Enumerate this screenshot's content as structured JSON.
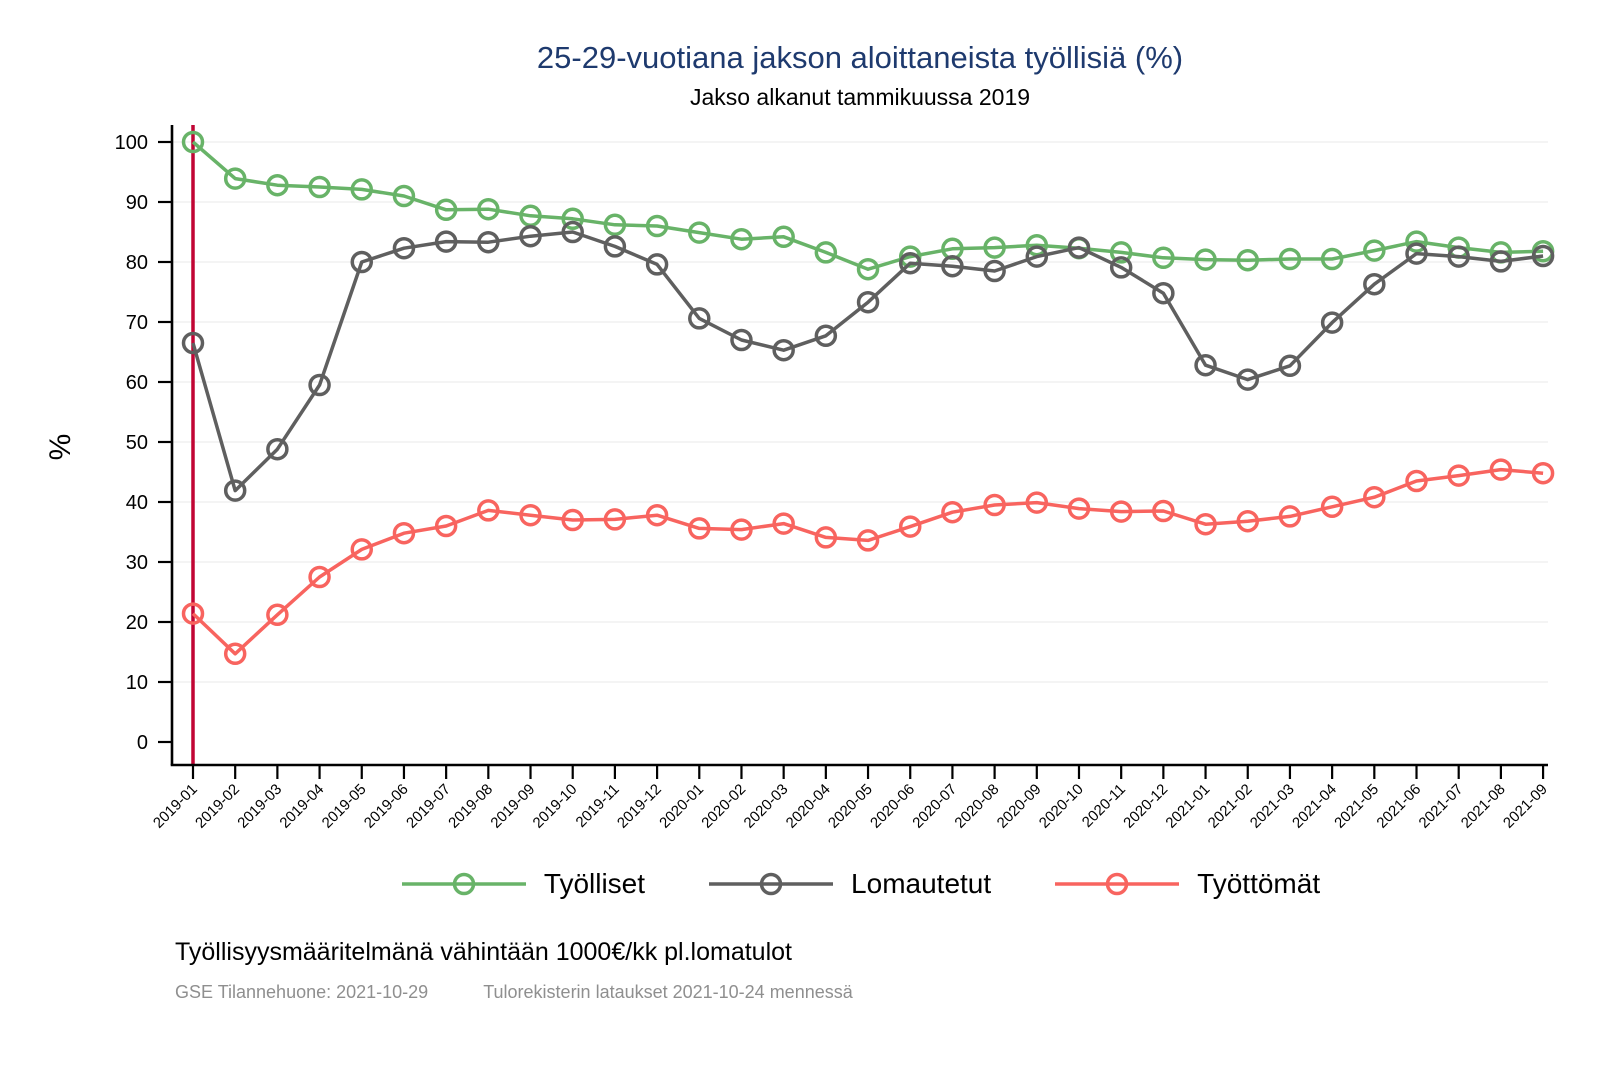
{
  "title": "25-29-vuotiana jakson aloittaneista työllisiä (%)",
  "subtitle": "Jakso alkanut tammikuussa 2019",
  "footnote": "Työllisyysmääritelmänä vähintään 1000€/kk pl.lomatulot",
  "credits": {
    "left": "GSE Tilannehuone: 2021-10-29",
    "right": "Tulorekisterin lataukset 2021-10-24 mennessä"
  },
  "colors": {
    "title_blue": "#1e3a6e",
    "grid": "#eeeeee",
    "axis": "#000000",
    "vline_crimson": "#c10534",
    "credits_gray": "#8f8f8f"
  },
  "chart_data": {
    "type": "line",
    "title": "25-29-vuotiana jakson aloittaneista työllisiä (%)",
    "subtitle": "Jakso alkanut tammikuussa 2019",
    "xlabel": "",
    "ylabel": "%",
    "ylim": [
      0,
      100
    ],
    "yticks": [
      0,
      10,
      20,
      30,
      40,
      50,
      60,
      70,
      80,
      90,
      100
    ],
    "grid": "horizontal",
    "legend_position": "bottom",
    "vline": {
      "at_x": "2019-01",
      "color": "#c10534"
    },
    "x": [
      "2019-01",
      "2019-02",
      "2019-03",
      "2019-04",
      "2019-05",
      "2019-06",
      "2019-07",
      "2019-08",
      "2019-09",
      "2019-10",
      "2019-11",
      "2019-12",
      "2020-01",
      "2020-02",
      "2020-03",
      "2020-04",
      "2020-05",
      "2020-06",
      "2020-07",
      "2020-08",
      "2020-09",
      "2020-10",
      "2020-11",
      "2020-12",
      "2021-01",
      "2021-02",
      "2021-03",
      "2021-04",
      "2021-05",
      "2021-06",
      "2021-07",
      "2021-08",
      "2021-09"
    ],
    "series": [
      {
        "name": "Työlliset",
        "color": "#68b368",
        "values": [
          100,
          93.9,
          92.8,
          92.5,
          92.1,
          91.0,
          88.7,
          88.8,
          87.7,
          87.2,
          86.2,
          86.0,
          84.9,
          83.8,
          84.2,
          81.6,
          78.8,
          80.9,
          82.2,
          82.4,
          82.8,
          82.3,
          81.6,
          80.7,
          80.4,
          80.3,
          80.5,
          80.5,
          81.9,
          83.4,
          82.4,
          81.6,
          81.8
        ]
      },
      {
        "name": "Lomautetut",
        "color": "#5f5f5f",
        "values": [
          66.5,
          41.9,
          48.8,
          59.5,
          80.0,
          82.3,
          83.4,
          83.3,
          84.3,
          85.0,
          82.6,
          79.6,
          70.6,
          67.0,
          65.3,
          67.7,
          73.3,
          79.8,
          79.3,
          78.5,
          80.9,
          82.4,
          79.1,
          74.8,
          62.8,
          60.4,
          62.7,
          69.9,
          76.3,
          81.4,
          80.9,
          80.1,
          81.0
        ]
      },
      {
        "name": "Työttömät",
        "color": "#f8645f",
        "values": [
          21.4,
          14.7,
          21.2,
          27.5,
          32.1,
          34.8,
          36.0,
          38.6,
          37.8,
          37.0,
          37.1,
          37.8,
          35.6,
          35.4,
          36.4,
          34.1,
          33.6,
          35.9,
          38.3,
          39.5,
          39.9,
          38.9,
          38.4,
          38.5,
          36.3,
          36.8,
          37.6,
          39.2,
          40.8,
          43.5,
          44.4,
          45.4,
          44.8
        ]
      }
    ]
  }
}
